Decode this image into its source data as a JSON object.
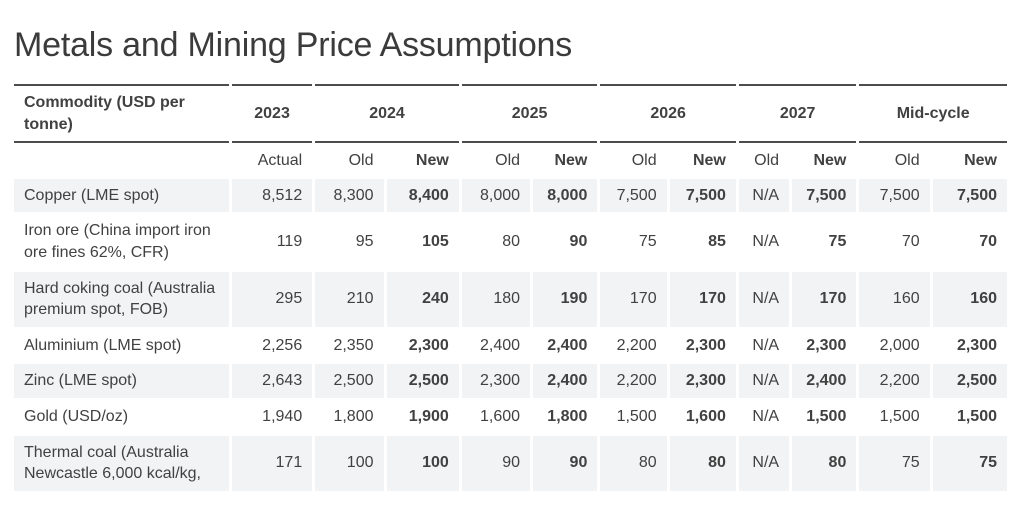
{
  "title": "Metals and Mining Price Assumptions",
  "table": {
    "commodity_header": "Commodity (USD per tonne)",
    "groups": [
      {
        "label": "2023",
        "columns": [
          "Actual"
        ]
      },
      {
        "label": "2024",
        "columns": [
          "Old",
          "New"
        ]
      },
      {
        "label": "2025",
        "columns": [
          "Old",
          "New"
        ]
      },
      {
        "label": "2026",
        "columns": [
          "Old",
          "New"
        ]
      },
      {
        "label": "2027",
        "columns": [
          "Old",
          "New"
        ]
      },
      {
        "label": "Mid-cycle",
        "columns": [
          "Old",
          "New"
        ]
      }
    ],
    "rows": [
      {
        "commodity": "Copper (LME spot)",
        "values": [
          "8,512",
          "8,300",
          "8,400",
          "8,000",
          "8,000",
          "7,500",
          "7,500",
          "N/A",
          "7,500",
          "7,500",
          "7,500"
        ]
      },
      {
        "commodity": "Iron ore (China import iron ore fines 62%, CFR)",
        "values": [
          "119",
          "95",
          "105",
          "80",
          "90",
          "75",
          "85",
          "N/A",
          "75",
          "70",
          "70"
        ]
      },
      {
        "commodity": "Hard coking coal (Australia premium spot, FOB)",
        "values": [
          "295",
          "210",
          "240",
          "180",
          "190",
          "170",
          "170",
          "N/A",
          "170",
          "160",
          "160"
        ]
      },
      {
        "commodity": "Aluminium (LME spot)",
        "values": [
          "2,256",
          "2,350",
          "2,300",
          "2,400",
          "2,400",
          "2,200",
          "2,300",
          "N/A",
          "2,300",
          "2,000",
          "2,300"
        ]
      },
      {
        "commodity": "Zinc (LME spot)",
        "values": [
          "2,643",
          "2,500",
          "2,500",
          "2,300",
          "2,400",
          "2,200",
          "2,300",
          "N/A",
          "2,400",
          "2,200",
          "2,500"
        ]
      },
      {
        "commodity": "Gold (USD/oz)",
        "values": [
          "1,940",
          "1,800",
          "1,900",
          "1,600",
          "1,800",
          "1,500",
          "1,600",
          "N/A",
          "1,500",
          "1,500",
          "1,500"
        ]
      },
      {
        "commodity": "Thermal coal (Australia Newcastle 6,000 kcal/kg,",
        "values": [
          "171",
          "100",
          "100",
          "90",
          "90",
          "80",
          "80",
          "N/A",
          "80",
          "75",
          "75"
        ]
      }
    ]
  },
  "colors": {
    "text": "#414141",
    "title": "#3b3b3b",
    "border": "#4c4c4c",
    "row_shade": "#f1f3f4",
    "background": "#ffffff"
  }
}
